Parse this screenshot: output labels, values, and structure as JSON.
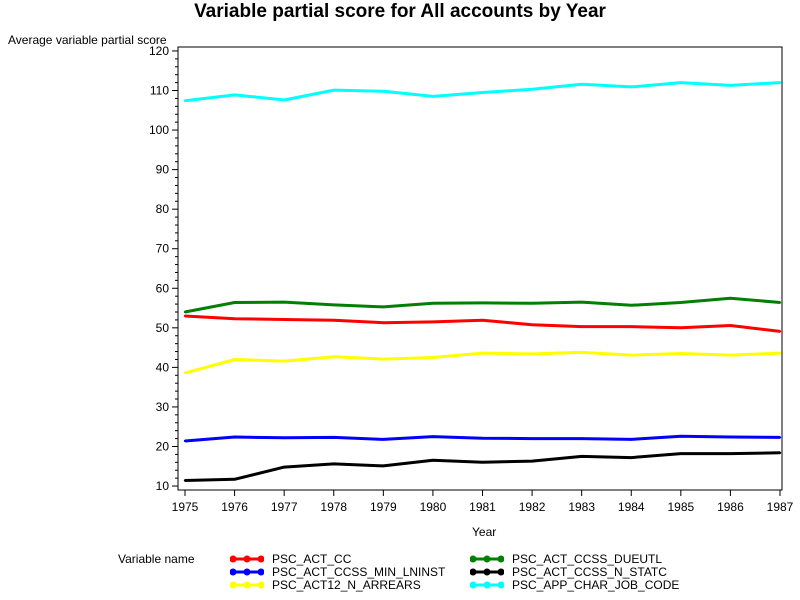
{
  "chart_data": {
    "type": "line",
    "title": "Variable partial score for All accounts by Year",
    "xlabel": "Year",
    "ylabel": "Average variable partial score",
    "legend_title": "Variable name",
    "legend_position": "bottom",
    "ylim": [
      9,
      121
    ],
    "yticks": [
      "10",
      "20",
      "30",
      "40",
      "50",
      "60",
      "70",
      "80",
      "90",
      "100",
      "110",
      "120"
    ],
    "categories": [
      "1975",
      "1976",
      "1977",
      "1978",
      "1979",
      "1980",
      "1981",
      "1982",
      "1983",
      "1984",
      "1985",
      "1986",
      "1987"
    ],
    "series": [
      {
        "name": "PSC_ACT_CC",
        "color": "#ff0000",
        "values": [
          53.0,
          52.3,
          52.1,
          51.9,
          51.3,
          51.5,
          51.9,
          50.8,
          50.3,
          50.3,
          50.0,
          50.6,
          49.1
        ]
      },
      {
        "name": "PSC_ACT_CCSS_DUEUTL",
        "color": "#008000",
        "values": [
          54.0,
          56.4,
          56.5,
          55.8,
          55.3,
          56.2,
          56.3,
          56.2,
          56.5,
          55.7,
          56.4,
          57.5,
          56.4
        ]
      },
      {
        "name": "PSC_ACT_CCSS_MIN_LNINST",
        "color": "#0000ff",
        "values": [
          21.4,
          22.4,
          22.2,
          22.3,
          21.8,
          22.5,
          22.1,
          22.0,
          22.0,
          21.8,
          22.6,
          22.4,
          22.3
        ]
      },
      {
        "name": "PSC_ACT_CCSS_N_STATC",
        "color": "#000000",
        "values": [
          11.4,
          11.7,
          14.8,
          15.6,
          15.1,
          16.5,
          16.0,
          16.3,
          17.5,
          17.2,
          18.2,
          18.2,
          18.4
        ]
      },
      {
        "name": "PSC_ACT12_N_ARREARS",
        "color": "#ffff00",
        "values": [
          38.6,
          42.0,
          41.6,
          42.7,
          42.1,
          42.5,
          43.6,
          43.4,
          43.8,
          43.1,
          43.5,
          43.1,
          43.6
        ]
      },
      {
        "name": "PSC_APP_CHAR_JOB_CODE",
        "color": "#00ffff",
        "values": [
          107.4,
          108.9,
          107.6,
          110.1,
          109.8,
          108.5,
          109.5,
          110.3,
          111.6,
          110.9,
          112.0,
          111.3,
          112.0
        ]
      }
    ]
  }
}
